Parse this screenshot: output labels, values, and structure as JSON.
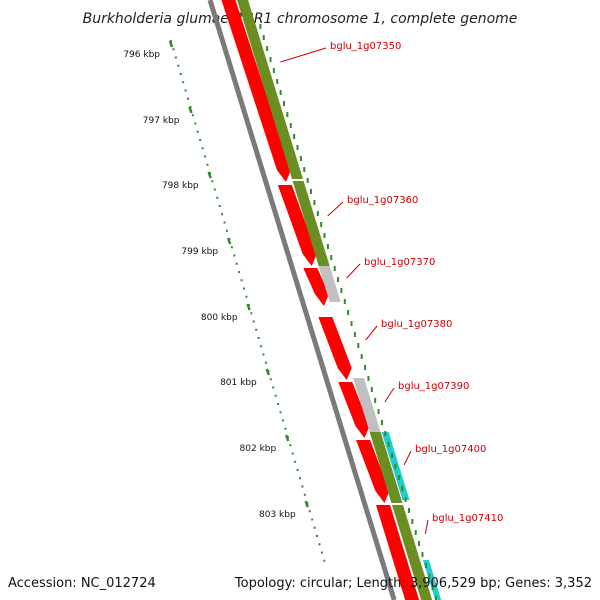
{
  "title": "Burkholderia glumae BGR1 chromosome 1, complete genome",
  "footer": {
    "accession": "Accession: NC_012724",
    "summary": "Topology: circular; Length: 3,906,529 bp; Genes: 3,352"
  },
  "colors": {
    "backbone": "#7a7a7a",
    "cds": "#ff0000",
    "gene": "#6b8e23",
    "misc": "#c0c0c0",
    "rna": "#22cccc",
    "tick": "#2e8b2e",
    "label": "#cc0000"
  },
  "ticks": [
    "796 kbp",
    "797 kbp",
    "798 kbp",
    "799 kbp",
    "800 kbp",
    "801 kbp",
    "802 kbp",
    "803 kbp"
  ],
  "gene_labels": [
    "bglu_1g07350",
    "bglu_1g07360",
    "bglu_1g07370",
    "bglu_1g07380",
    "bglu_1g07390",
    "bglu_1g07400",
    "bglu_1g07410"
  ]
}
